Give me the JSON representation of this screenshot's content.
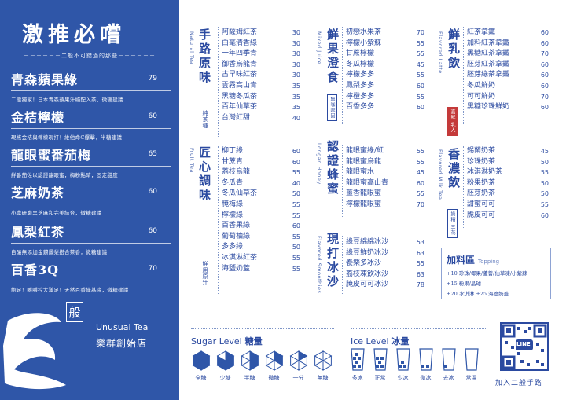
{
  "left": {
    "title": "激推必嚐",
    "subtitle": "－－－－－－二般不可錯過的那些－－－－－－",
    "items": [
      {
        "name": "青森蘋果綠",
        "price": "79",
        "desc": "二般獨家！日本青森蘋果汁絕配入茶，微糖建議"
      },
      {
        "name": "金桔檸檬",
        "price": "60",
        "desc": "現搖金桔與檸檬現打！維他命C爆擊，半糖建議"
      },
      {
        "name": "龍眼蜜番茄梅",
        "price": "65",
        "desc": "鮮番茄佐以認證龍眼蜜，梅粉點睛，固定甜度"
      },
      {
        "name": "芝麻奶茶",
        "price": "60",
        "desc": "小農研磨黑芝麻和完美結合，微糖建議"
      },
      {
        "name": "鳳梨紅茶",
        "price": "60",
        "desc": "自釀無添加金鑽鳳梨搭合茶香，微糖建議"
      },
      {
        "name": "百香3Q",
        "price": "70",
        "desc": "飽足！嚼嚼控大滿足！天然百香綠基底，微糖建議"
      }
    ],
    "brand_mark": "般",
    "brand_en": "Unusual Tea",
    "brand_zh": "樂群創始店"
  },
  "sections": {
    "natural": {
      "title": "手路原味",
      "en": "Natural Tea",
      "note": "純茶種",
      "items": [
        {
          "name": "阿薩姆紅茶",
          "price": "30"
        },
        {
          "name": "白毫清香綠",
          "price": "30"
        },
        {
          "name": "一年四季青",
          "price": "30"
        },
        {
          "name": "御香烏龍青",
          "price": "30"
        },
        {
          "name": "古早味紅茶",
          "price": "30"
        },
        {
          "name": "雲霧高山青",
          "price": "35"
        },
        {
          "name": "黑糖冬瓜茶",
          "price": "35"
        },
        {
          "name": "百年仙草茶",
          "price": "35"
        },
        {
          "name": "台灣紅甜",
          "price": "40"
        }
      ]
    },
    "fruit": {
      "title": "匠心調味",
      "en": "Fruit Tea",
      "note": "鮮用原汁",
      "items": [
        {
          "name": "柳丁綠",
          "price": "60"
        },
        {
          "name": "甘蔗青",
          "price": "60"
        },
        {
          "name": "荔枝烏龍",
          "price": "55"
        },
        {
          "name": "冬瓜青",
          "price": "40"
        },
        {
          "name": "冬瓜仙草茶",
          "price": "50"
        },
        {
          "name": "腌梅綠",
          "price": "55"
        },
        {
          "name": "檸檬綠",
          "price": "55"
        },
        {
          "name": "百香果綠",
          "price": "60"
        },
        {
          "name": "葡萄柚綠",
          "price": "55"
        },
        {
          "name": "多多綠",
          "price": "50"
        },
        {
          "name": "冰淇淋紅茶",
          "price": "55"
        },
        {
          "name": "海鹽奶蓋",
          "price": "55"
        }
      ]
    },
    "juice": {
      "title": "鮮果澄食",
      "en": "Mixed Juice",
      "badge": "無咖啡因",
      "items": [
        {
          "name": "初戀水果茶",
          "price": "70"
        },
        {
          "name": "檸檬小紫蘇",
          "price": "55"
        },
        {
          "name": "甘蔗檸檬",
          "price": "55"
        },
        {
          "name": "冬瓜檸檬",
          "price": "45"
        },
        {
          "name": "檸檬多多",
          "price": "55"
        },
        {
          "name": "鳳梨多多",
          "price": "60"
        },
        {
          "name": "檸橙多多",
          "price": "55"
        },
        {
          "name": "百香多多",
          "price": "60"
        }
      ]
    },
    "honey": {
      "title": "認證蜂蜜",
      "en": "Longan Honey",
      "items": [
        {
          "name": "龍眼蜜綠/紅",
          "price": "55"
        },
        {
          "name": "龍眼蜜烏龍",
          "price": "55"
        },
        {
          "name": "龍眼蜜水",
          "price": "45"
        },
        {
          "name": "龍眼蜜高山青",
          "price": "60"
        },
        {
          "name": "薑香龍眼蜜",
          "price": "55"
        },
        {
          "name": "檸檬龍眼蜜",
          "price": "70"
        }
      ]
    },
    "smoothie": {
      "title": "現打冰沙",
      "en": "Flavored Smoothies",
      "items": [
        {
          "name": "綠豆綿綿冰沙",
          "price": "53"
        },
        {
          "name": "綠豆鮮奶冰沙",
          "price": "63"
        },
        {
          "name": "養樂多冰沙",
          "price": "55"
        },
        {
          "name": "荔枝凍飲冰沙",
          "price": "63"
        },
        {
          "name": "腌皮可可冰沙",
          "price": "78"
        }
      ]
    },
    "latte": {
      "title": "鮮乳飲",
      "en": "Flavored Latte",
      "badge": "高鮮 乳人",
      "items": [
        {
          "name": "紅茶拿鐵",
          "price": "60"
        },
        {
          "name": "加料紅茶拿鐵",
          "price": "60"
        },
        {
          "name": "黑糖紅茶拿鐵",
          "price": "70"
        },
        {
          "name": "胚芽紅茶拿鐵",
          "price": "60"
        },
        {
          "name": "胚芽綠茶拿鐵",
          "price": "60"
        },
        {
          "name": "冬瓜鮮奶",
          "price": "60"
        },
        {
          "name": "可可鮮奶",
          "price": "70"
        },
        {
          "name": "黑糖珍珠鮮奶",
          "price": "60"
        }
      ]
    },
    "milktea": {
      "title": "香濃飲",
      "en": "Flavored Milk Tea",
      "badge": "奶精 三花",
      "items": [
        {
          "name": "錫蘭奶茶",
          "price": "45"
        },
        {
          "name": "珍珠奶茶",
          "price": "50"
        },
        {
          "name": "冰淇淋奶茶",
          "price": "55"
        },
        {
          "name": "粉果奶茶",
          "price": "50"
        },
        {
          "name": "胚芽奶茶",
          "price": "50"
        },
        {
          "name": "甜蜜可可",
          "price": "55"
        },
        {
          "name": "脆皮可可",
          "price": "60"
        }
      ]
    }
  },
  "toppings": {
    "title": "加料區",
    "en": "Topping",
    "lines": [
      "+10 珍珠/椰果/蘆薈/仙草凍/小紫蘇",
      "+15 粉果/晶球",
      "+20 冰淇淋  +25 海鹽奶蓋"
    ]
  },
  "sugar": {
    "title_en": "Sugar Level",
    "title_zh": "糖量",
    "levels": [
      {
        "label": "全糖",
        "filled": 6
      },
      {
        "label": "少糖",
        "filled": 5
      },
      {
        "label": "半糖",
        "filled": 3
      },
      {
        "label": "微糖",
        "filled": 2
      },
      {
        "label": "一分",
        "filled": 1
      },
      {
        "label": "無糖",
        "filled": 0
      }
    ]
  },
  "ice": {
    "title_en": "Ice Level",
    "title_zh": "冰量",
    "levels": [
      {
        "label": "多冰",
        "level": 6
      },
      {
        "label": "正常",
        "level": 5
      },
      {
        "label": "少冰",
        "level": 3
      },
      {
        "label": "微冰",
        "level": 2
      },
      {
        "label": "去冰",
        "level": 1
      },
      {
        "label": "常溫",
        "level": 0
      }
    ]
  },
  "qr": {
    "label": "加入二般手路",
    "badge": "LINE"
  },
  "colors": {
    "accent": "#2f56a8",
    "red": "#c43a3a"
  }
}
